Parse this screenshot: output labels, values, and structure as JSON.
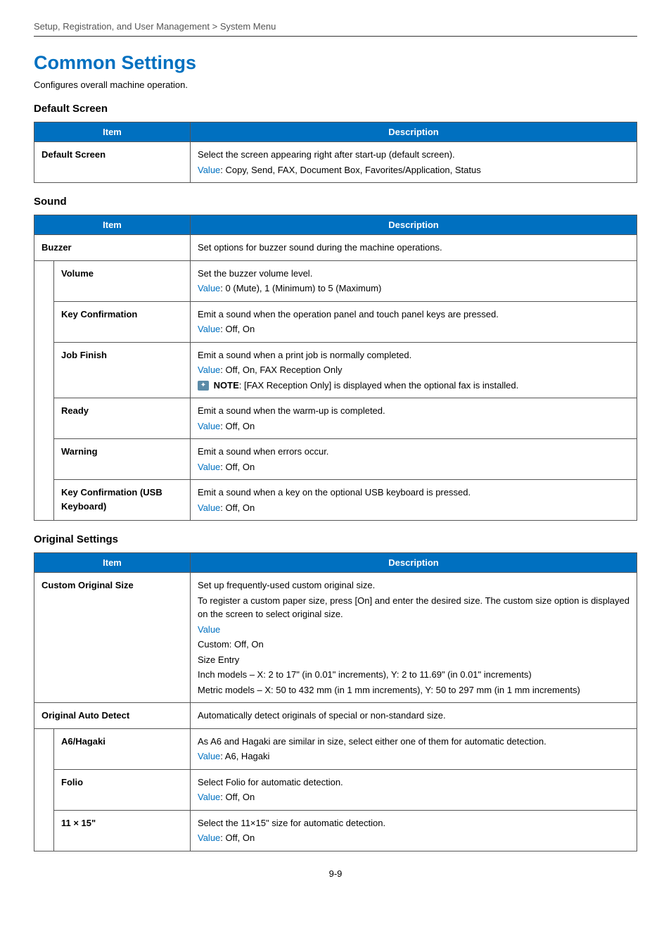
{
  "breadcrumb": "Setup, Registration, and User Management > System Menu",
  "page_title": "Common Settings",
  "page_intro": "Configures overall machine operation.",
  "page_number": "9-9",
  "colors": {
    "accent": "#0070c0",
    "header_bg": "#0070c0",
    "header_text": "#ffffff",
    "border": "#555555",
    "text": "#000000",
    "note_icon_bg": "#5b8ba8"
  },
  "th_item": "Item",
  "th_desc": "Description",
  "value_word": "Value",
  "note_word": "NOTE",
  "sections": {
    "default_screen": {
      "heading": "Default Screen",
      "rows": [
        {
          "item": "Default Screen",
          "desc1": "Select the screen appearing right after start-up (default screen).",
          "value_text": ": Copy, Send, FAX, Document Box, Favorites/Application, Status"
        }
      ]
    },
    "sound": {
      "heading": "Sound",
      "buzzer_item": "Buzzer",
      "buzzer_desc": "Set options for buzzer sound during the machine operations.",
      "subrows": [
        {
          "item": "Volume",
          "desc": "Set the buzzer volume level.",
          "value_text": ": 0 (Mute), 1 (Minimum) to 5 (Maximum)"
        },
        {
          "item": "Key Confirmation",
          "desc": "Emit a sound when the operation panel and touch panel keys are pressed.",
          "value_text": ": Off, On"
        },
        {
          "item": "Job Finish",
          "desc": "Emit a sound when a print job is normally completed.",
          "value_text": ": Off, On, FAX Reception Only",
          "note_text": ": [FAX Reception Only] is displayed when the optional fax is installed."
        },
        {
          "item": "Ready",
          "desc": "Emit a sound when the warm-up is completed.",
          "value_text": ": Off, On"
        },
        {
          "item": "Warning",
          "desc": "Emit a sound when errors occur.",
          "value_text": ": Off, On"
        },
        {
          "item": "Key Confirmation (USB Keyboard)",
          "desc": "Emit a sound when a key on the optional USB keyboard is pressed.",
          "value_text": ": Off, On"
        }
      ]
    },
    "original": {
      "heading": "Original Settings",
      "custom_item": "Custom Original Size",
      "custom_desc1": "Set up frequently-used custom original size.",
      "custom_desc2": "To register a custom paper size, press [On] and enter the desired size. The custom size option is displayed on the screen to select original size.",
      "custom_line_custom": "Custom: Off, On",
      "custom_line_sizeentry": "Size Entry",
      "custom_line_inch": "Inch models – X: 2 to 17\" (in 0.01\" increments), Y: 2 to 11.69\" (in 0.01\" increments)",
      "custom_line_metric": "Metric models – X: 50 to 432 mm (in 1 mm increments), Y: 50 to 297 mm (in 1 mm increments)",
      "autodetect_item": "Original Auto Detect",
      "autodetect_desc": "Automatically detect originals of special or non-standard size.",
      "subrows": [
        {
          "item": "A6/Hagaki",
          "desc": "As A6 and Hagaki are similar in size, select either one of them for automatic detection.",
          "value_text": ": A6, Hagaki"
        },
        {
          "item": "Folio",
          "desc": "Select Folio for automatic detection.",
          "value_text": ": Off, On"
        },
        {
          "item": "11 × 15\"",
          "desc": "Select the 11×15\" size for automatic detection.",
          "value_text": ": Off, On"
        }
      ]
    }
  }
}
